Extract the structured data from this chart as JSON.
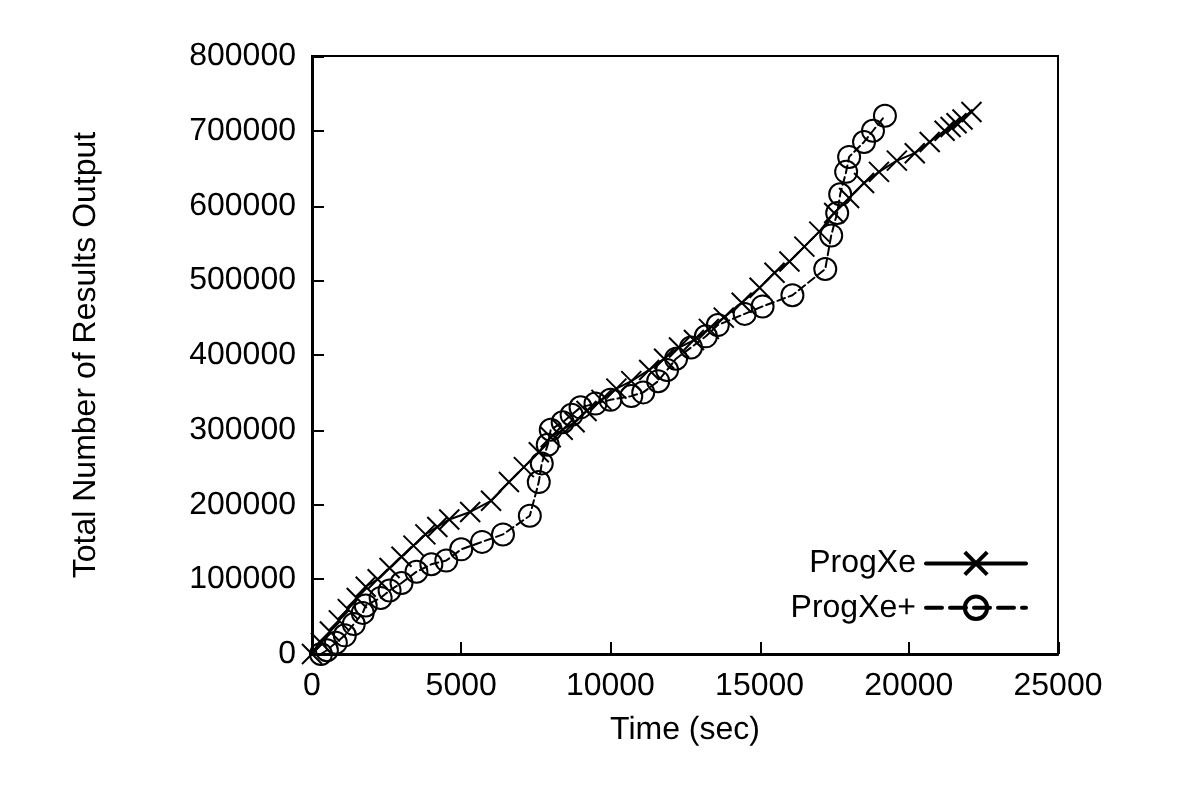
{
  "chart_data": {
    "type": "line",
    "xlabel": "Time (sec)",
    "ylabel": "Total Number of Results Output",
    "xlim": [
      0,
      25000
    ],
    "xticks": [
      0,
      5000,
      10000,
      15000,
      20000,
      25000
    ],
    "ylim": [
      0,
      800000
    ],
    "yticks": [
      0,
      100000,
      200000,
      300000,
      400000,
      500000,
      600000,
      700000,
      800000
    ],
    "grid": false,
    "legend": "bottom right",
    "series": [
      {
        "name": "ProgXe",
        "color": "#000000",
        "marker": "cross",
        "line_style": "solid",
        "x": [
          0,
          300,
          600,
          900,
          1200,
          1500,
          1800,
          2200,
          2600,
          3000,
          3400,
          3800,
          4200,
          4600,
          5300,
          6000,
          6600,
          7100,
          7600,
          8000,
          8400,
          8800,
          9200,
          9700,
          10200,
          10700,
          11300,
          11800,
          12300,
          12800,
          13300,
          13800,
          14400,
          15000,
          15500,
          16000,
          16500,
          17000,
          17500,
          18000,
          18500,
          19000,
          19600,
          20200,
          20700,
          21200,
          21400,
          21600,
          21800,
          22100
        ],
        "values": [
          0,
          15000,
          30000,
          45000,
          60000,
          75000,
          90000,
          100000,
          115000,
          130000,
          145000,
          160000,
          170000,
          180000,
          190000,
          205000,
          230000,
          250000,
          270000,
          290000,
          300000,
          310000,
          325000,
          340000,
          355000,
          365000,
          380000,
          395000,
          410000,
          420000,
          435000,
          450000,
          470000,
          490000,
          510000,
          525000,
          545000,
          565000,
          590000,
          610000,
          630000,
          645000,
          660000,
          670000,
          685000,
          700000,
          705000,
          710000,
          715000,
          725000
        ]
      },
      {
        "name": "ProgXe+",
        "color": "#000000",
        "marker": "circle",
        "line_style": "dashed",
        "x": [
          300,
          500,
          800,
          1100,
          1400,
          1700,
          1800,
          2300,
          2600,
          3000,
          3500,
          4000,
          4500,
          5000,
          5700,
          6400,
          7300,
          7600,
          7700,
          7900,
          8000,
          8400,
          8700,
          9000,
          9500,
          10000,
          10700,
          11100,
          11600,
          11900,
          12200,
          12700,
          13200,
          13600,
          14500,
          15100,
          16100,
          17200,
          17400,
          17600,
          17700,
          17900,
          18000,
          18500,
          18800,
          19200
        ],
        "values": [
          0,
          5000,
          15000,
          25000,
          40000,
          55000,
          65000,
          75000,
          85000,
          95000,
          110000,
          120000,
          125000,
          140000,
          150000,
          160000,
          185000,
          230000,
          255000,
          280000,
          300000,
          310000,
          320000,
          330000,
          335000,
          340000,
          345000,
          350000,
          365000,
          380000,
          395000,
          410000,
          425000,
          440000,
          455000,
          465000,
          480000,
          515000,
          560000,
          590000,
          615000,
          645000,
          665000,
          685000,
          700000,
          720000
        ]
      }
    ]
  }
}
